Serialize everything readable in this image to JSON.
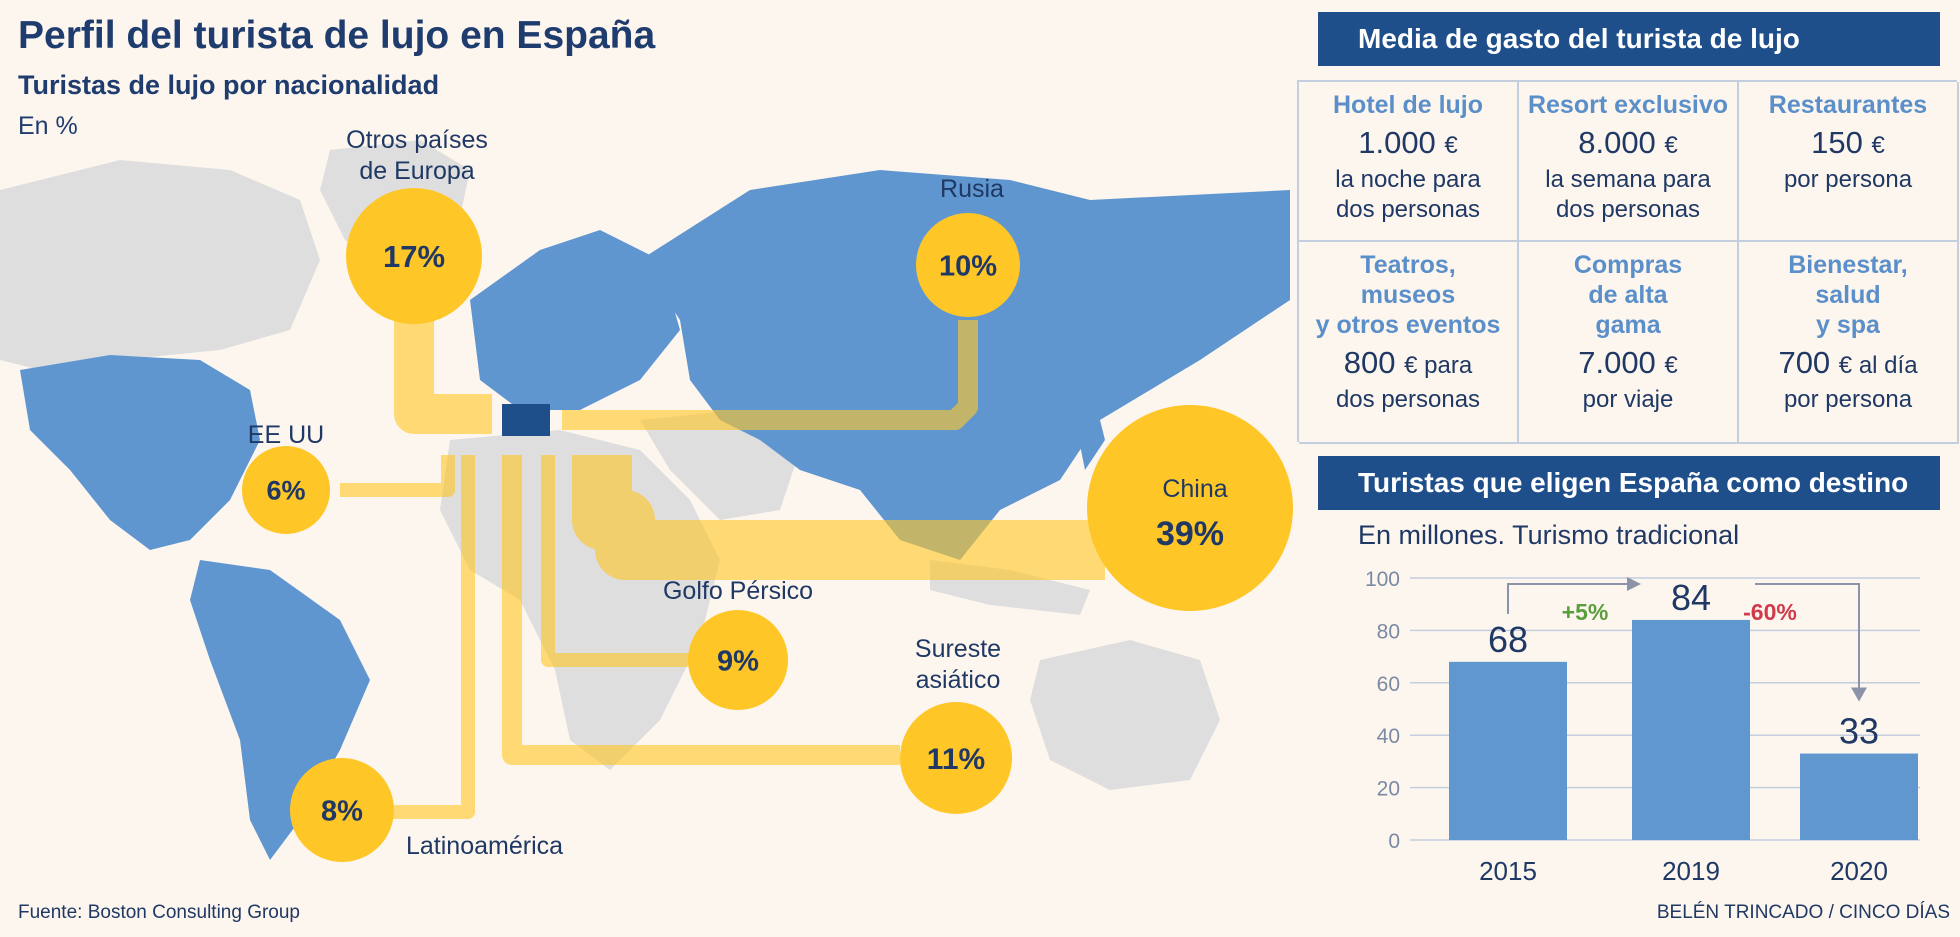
{
  "header": {
    "title": "Perfil del turista de lujo en España",
    "subtitle": "Turistas de lujo por nacionalidad",
    "unit": "En %"
  },
  "map": {
    "regions": [
      {
        "name_lines": [
          "Otros países",
          "de Europa"
        ],
        "value": 17,
        "label": "17%"
      },
      {
        "name_lines": [
          "Rusia"
        ],
        "value": 10,
        "label": "10%"
      },
      {
        "name_lines": [
          "EE UU"
        ],
        "value": 6,
        "label": "6%"
      },
      {
        "name_lines": [
          "China"
        ],
        "value": 39,
        "label": "39%"
      },
      {
        "name_lines": [
          "Golfo Pérsico"
        ],
        "value": 9,
        "label": "9%"
      },
      {
        "name_lines": [
          "Sureste",
          "asiático"
        ],
        "value": 11,
        "label": "11%"
      },
      {
        "name_lines": [
          "Latinoamérica"
        ],
        "value": 8,
        "label": "8%"
      }
    ]
  },
  "spending": {
    "header": "Media de gasto del turista de lujo",
    "currency": "€",
    "items": [
      {
        "title": "Hotel de lujo",
        "amount": "1.000",
        "suffix": "",
        "desc": "la noche para\ndos personas"
      },
      {
        "title": "Resort exclusivo",
        "amount": "8.000",
        "suffix": "",
        "desc": "la semana para\ndos personas"
      },
      {
        "title": "Restaurantes",
        "amount": "150",
        "suffix": "",
        "desc": "por persona"
      },
      {
        "title": "Teatros,\nmuseos\ny otros eventos",
        "amount": "800",
        "suffix": " para",
        "desc": "dos personas"
      },
      {
        "title": "Compras\nde alta\ngama",
        "amount": "7.000",
        "suffix": "",
        "desc": "por viaje"
      },
      {
        "title": "Bienestar,\nsalud\ny spa",
        "amount": "700",
        "suffix": " al día",
        "desc": "por persona"
      }
    ]
  },
  "tourists": {
    "header": "Turistas que eligen España como destino",
    "note": "En millones. Turismo tradicional"
  },
  "chart_data": {
    "type": "bar",
    "title": "Turistas que eligen España como destino",
    "subtitle": "En millones. Turismo tradicional",
    "categories": [
      "2015",
      "2019",
      "2020"
    ],
    "values": [
      68,
      84,
      33
    ],
    "value_labels": [
      "68",
      "84",
      "33"
    ],
    "ylim": [
      0,
      100
    ],
    "yticks": [
      0,
      20,
      40,
      60,
      80,
      100
    ],
    "grid": true,
    "annotations": [
      {
        "from": "2015",
        "to": "2019",
        "label": "+5%",
        "color": "#5a9e3c"
      },
      {
        "from": "2019",
        "to": "2020",
        "label": "-60%",
        "color": "#d03a4a"
      }
    ],
    "bar_color": "#6097cf"
  },
  "footer": {
    "source": "Fuente: Boston Consulting Group",
    "credit": "BELÉN TRINCADO / CINCO DÍAS"
  }
}
